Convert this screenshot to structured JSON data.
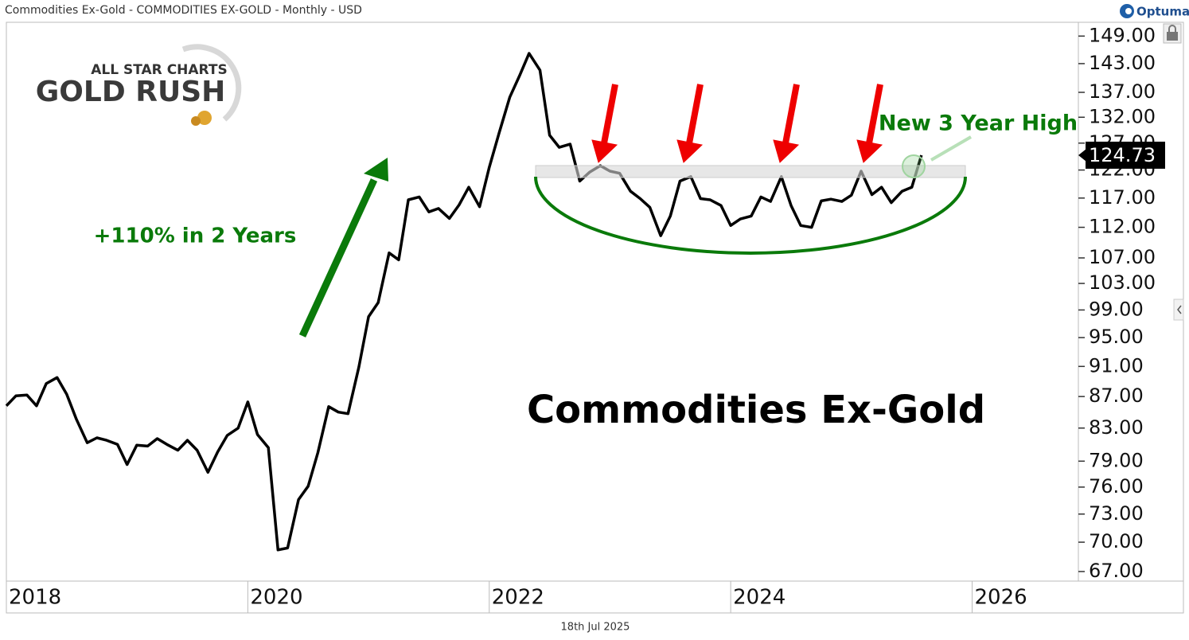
{
  "chart_data": {
    "type": "line",
    "title": "Commodities Ex-Gold - COMMODITIES EX-GOLD - Monthly - USD",
    "brand": "Optuma",
    "logo": [
      "ALL STAR CHARTS",
      "GOLD RUSH"
    ],
    "date_label": "18th Jul 2025",
    "annotations": [
      "+110% in 2 Years",
      "New 3 Year High",
      "Commodities Ex-Gold"
    ],
    "color": "#000000",
    "log_scale": true,
    "grid": false,
    "x": [
      2018.0,
      2018.08,
      2018.17,
      2018.25,
      2018.33,
      2018.42,
      2018.5,
      2018.58,
      2018.67,
      2018.75,
      2018.83,
      2018.92,
      2019.0,
      2019.08,
      2019.17,
      2019.25,
      2019.33,
      2019.42,
      2019.5,
      2019.58,
      2019.67,
      2019.75,
      2019.83,
      2019.92,
      2020.0,
      2020.08,
      2020.17,
      2020.25,
      2020.33,
      2020.42,
      2020.5,
      2020.58,
      2020.67,
      2020.75,
      2020.83,
      2020.92,
      2021.0,
      2021.08,
      2021.17,
      2021.25,
      2021.33,
      2021.42,
      2021.5,
      2021.58,
      2021.67,
      2021.75,
      2021.83,
      2021.92,
      2022.0,
      2022.08,
      2022.17,
      2022.25,
      2022.33,
      2022.42,
      2022.5,
      2022.58,
      2022.67,
      2022.75,
      2022.83,
      2022.92,
      2023.0,
      2023.08,
      2023.17,
      2023.25,
      2023.33,
      2023.42,
      2023.5,
      2023.58,
      2023.67,
      2023.75,
      2023.83,
      2023.92,
      2024.0,
      2024.08,
      2024.17,
      2024.25,
      2024.33,
      2024.42,
      2024.5,
      2024.58,
      2024.67,
      2024.75,
      2024.83,
      2024.92,
      2025.0,
      2025.08,
      2025.17,
      2025.25,
      2025.33,
      2025.42,
      2025.5,
      2025.58
    ],
    "values": [
      85.8,
      87.1,
      87.2,
      85.8,
      88.7,
      89.5,
      87.3,
      84.1,
      81.2,
      81.8,
      81.5,
      81.0,
      78.6,
      80.9,
      80.8,
      81.7,
      81.0,
      80.3,
      81.5,
      80.3,
      77.7,
      80.1,
      82.1,
      83.0,
      86.3,
      82.2,
      80.6,
      69.2,
      69.4,
      74.6,
      76.1,
      80.0,
      85.7,
      85.0,
      84.8,
      90.9,
      98.0,
      100.1,
      107.8,
      106.7,
      116.7,
      117.2,
      114.6,
      115.2,
      113.5,
      115.8,
      118.9,
      115.5,
      122.5,
      128.8,
      136.0,
      140.4,
      145.2,
      141.6,
      128.5,
      126.2,
      126.8,
      120.0,
      121.6,
      122.8,
      121.8,
      121.4,
      118.2,
      116.9,
      115.4,
      110.6,
      113.9,
      120.0,
      120.8,
      116.9,
      116.7,
      115.7,
      112.3,
      113.4,
      113.9,
      117.2,
      116.4,
      120.8,
      115.7,
      112.3,
      112.0,
      116.5,
      116.8,
      116.4,
      117.5,
      121.8,
      117.6,
      118.9,
      116.2,
      118.2,
      118.9,
      124.73
    ],
    "xlim": [
      2018,
      2026.88
    ],
    "xticks": [
      2018,
      2020,
      2022,
      2024,
      2026
    ],
    "ylim": [
      66.05,
      152.1
    ],
    "yticks": [
      {
        "value": 149,
        "label": "149.00"
      },
      {
        "value": 143,
        "label": "143.00"
      },
      {
        "value": 137,
        "label": "137.00"
      },
      {
        "value": 132,
        "label": "132.00"
      },
      {
        "value": 127,
        "label": "127.00"
      },
      {
        "value": 122,
        "label": "122.00"
      },
      {
        "value": 117,
        "label": "117.00"
      },
      {
        "value": 112,
        "label": "112.00"
      },
      {
        "value": 107,
        "label": "107.00"
      },
      {
        "value": 103,
        "label": "103.00"
      },
      {
        "value": 99,
        "label": "99.00"
      },
      {
        "value": 95,
        "label": "95.00"
      },
      {
        "value": 91,
        "label": "91.00"
      },
      {
        "value": 87,
        "label": "87.00"
      },
      {
        "value": 83,
        "label": "83.00"
      },
      {
        "value": 79,
        "label": "79.00"
      },
      {
        "value": 76,
        "label": "76.00"
      },
      {
        "value": 73,
        "label": "73.00"
      },
      {
        "value": 70,
        "label": "70.00"
      },
      {
        "value": 67,
        "label": "67.00"
      }
    ]
  }
}
